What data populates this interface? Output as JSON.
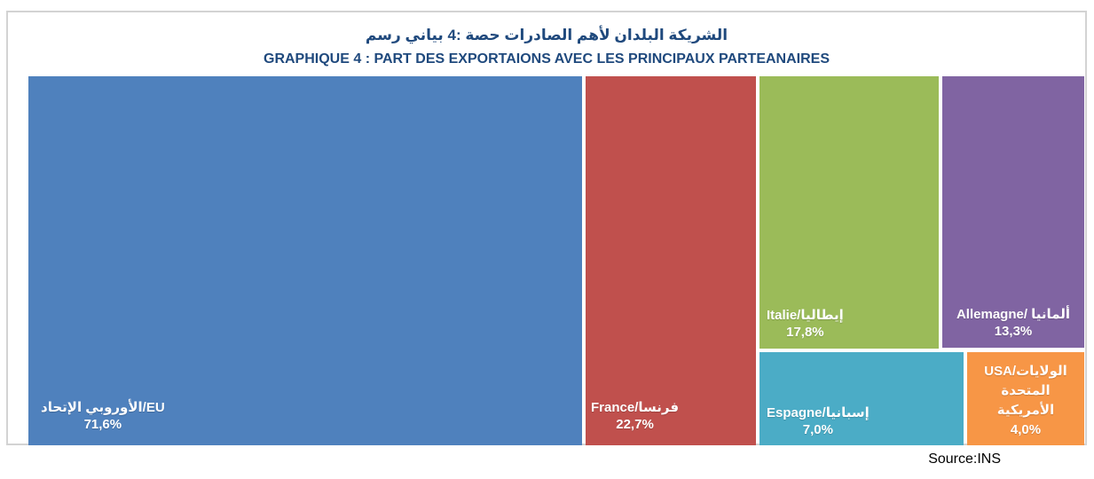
{
  "chart_data": {
    "type": "treemap",
    "title_ar": "رسم‎ بياني‎ 4: حصة‎ الصادرات‎ لأهم‎ البلدان‎ الشريكة",
    "title_fr": "GRAPHIQUE 4 : PART DES EXPORTAIONS AVEC LES PRINCIPAUX PARTEANAIRES",
    "unit": "percent",
    "legend_position": "none",
    "cells": [
      {
        "id": "eu",
        "name_fr": "EU",
        "name_ar": "الإتحاد الأوروبي",
        "label": "الإتحاد‎ الأوروبي‎/EU",
        "value": 71.6,
        "value_label": "71,6%",
        "color": "#4F81BD"
      },
      {
        "id": "france",
        "name_fr": "France",
        "name_ar": "فرنسا",
        "label": "France/فرنسا",
        "value": 22.7,
        "value_label": "22,7%",
        "color": "#C0504D"
      },
      {
        "id": "italie",
        "name_fr": "Italie",
        "name_ar": "إيطاليا",
        "label": "Italie/إيطاليا",
        "value": 17.8,
        "value_label": "17,8%",
        "color": "#9BBB59"
      },
      {
        "id": "espagne",
        "name_fr": "Espagne",
        "name_ar": "إسبانيا",
        "label": "Espagne/إسبانيا",
        "value": 7.0,
        "value_label": "7,0%",
        "color": "#4BACC6"
      },
      {
        "id": "allemagne",
        "name_fr": "Allemagne",
        "name_ar": "ألمانيا",
        "label": "Allemagne/ ألمانيا",
        "value": 13.3,
        "value_label": "13,3%",
        "color": "#8064A2"
      },
      {
        "id": "usa",
        "name_fr": "USA",
        "name_ar": "الولايات المتحدة الأمريكية",
        "label": "USA/الولايات المتحدة الأمريكية",
        "label_lines": [
          "USA/الولايات",
          "المتحدة",
          "الأمريكية"
        ],
        "value": 4.0,
        "value_label": "4,0%",
        "color": "#F79646"
      }
    ]
  },
  "footer": {
    "source": "Source:INS"
  }
}
